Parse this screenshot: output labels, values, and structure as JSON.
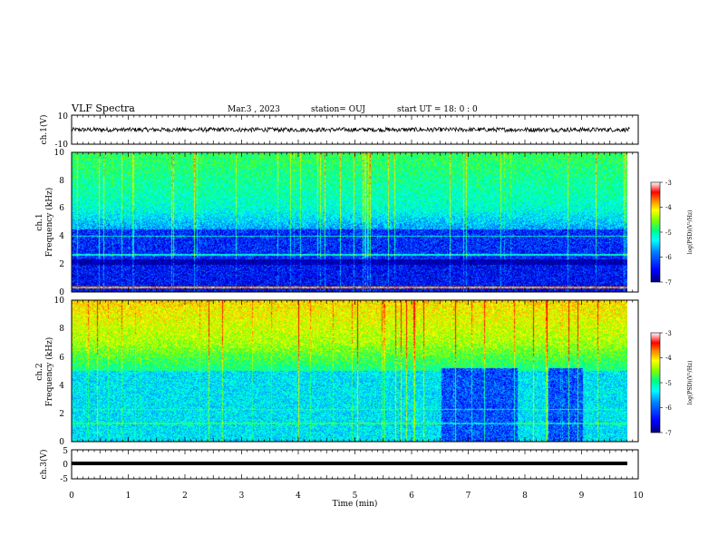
{
  "header": {
    "title": "VLF Spectra",
    "date": "Mar.3  , 2023",
    "station": "station= OUJ",
    "start": "start  UT =   18: 0  : 0"
  },
  "colors": {
    "background": "#ffffff",
    "axes": "#000000",
    "colormap": [
      "#00007f",
      "#0000ff",
      "#0080ff",
      "#00ffff",
      "#00ff80",
      "#80ff00",
      "#ffff00",
      "#ff8000",
      "#ff0000",
      "#ffffff"
    ]
  },
  "chart_data": [
    {
      "type": "line",
      "ylabel": "ch.1(V)",
      "ylim": [
        -10,
        10
      ],
      "yticks": [
        "10",
        "-10"
      ],
      "description_values": {
        "baseline_V": 0,
        "amplitude_V": 1.5
      }
    },
    {
      "type": "heatmap",
      "ylabel_channel": "ch.1",
      "ylabel": "Frequency (kHz)",
      "ylim": [
        0,
        10
      ],
      "yticks": [
        "0",
        "2",
        "4",
        "6",
        "8",
        "10"
      ],
      "colorbar": {
        "label": "log(PSD)(V²/Hz)",
        "range": [
          -7,
          -3
        ],
        "ticks": [
          "-3",
          "-4",
          "-5",
          "-6",
          "-7"
        ]
      }
    },
    {
      "type": "heatmap",
      "ylabel_channel": "ch.2",
      "ylabel": "Frequency (kHz)",
      "ylim": [
        0,
        10
      ],
      "yticks": [
        "0",
        "2",
        "4",
        "6",
        "8",
        "10"
      ],
      "colorbar": {
        "label": "log(PSD)(V²/Hz)",
        "range": [
          -7,
          -3
        ],
        "ticks": [
          "-3",
          "-4",
          "-5",
          "-6",
          "-7"
        ]
      },
      "low_level_intervals_min": [
        [
          6.55,
          7.9
        ],
        [
          8.45,
          9.05
        ]
      ]
    },
    {
      "type": "line",
      "ylabel": "ch.3(V)",
      "ylim": [
        -5,
        5
      ],
      "yticks": [
        "5",
        "0",
        "-5"
      ],
      "description_values": {
        "constant_V": 0
      }
    }
  ],
  "xaxis": {
    "label": "Time  (min)",
    "range": [
      0,
      10
    ],
    "ticks": [
      "0",
      "1",
      "2",
      "3",
      "4",
      "5",
      "6",
      "7",
      "8",
      "9",
      "10"
    ],
    "data_end_min": 9.85
  }
}
